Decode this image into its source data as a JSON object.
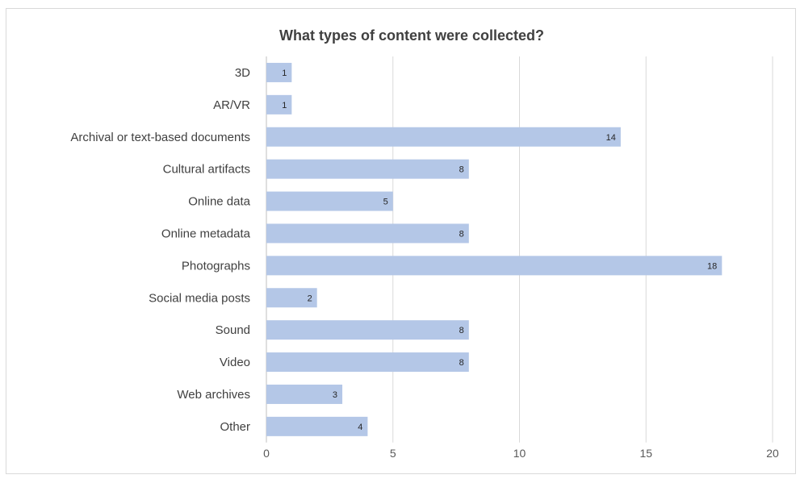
{
  "chart_data": {
    "type": "bar",
    "orientation": "horizontal",
    "title": "What types of content were collected?",
    "xlabel": "",
    "ylabel": "",
    "categories": [
      "3D",
      "AR/VR",
      "Archival or text-based documents",
      "Cultural artifacts",
      "Online data",
      "Online metadata",
      "Photographs",
      "Social media posts",
      "Sound",
      "Video",
      "Web archives",
      "Other"
    ],
    "values": [
      1,
      1,
      14,
      8,
      5,
      8,
      18,
      2,
      8,
      8,
      3,
      4
    ],
    "xlim": [
      0,
      20
    ],
    "xticks": [
      0,
      5,
      10,
      15,
      20
    ],
    "grid": true,
    "legend": "none",
    "bar_color": "#b4c7e7",
    "data_labels": true
  }
}
